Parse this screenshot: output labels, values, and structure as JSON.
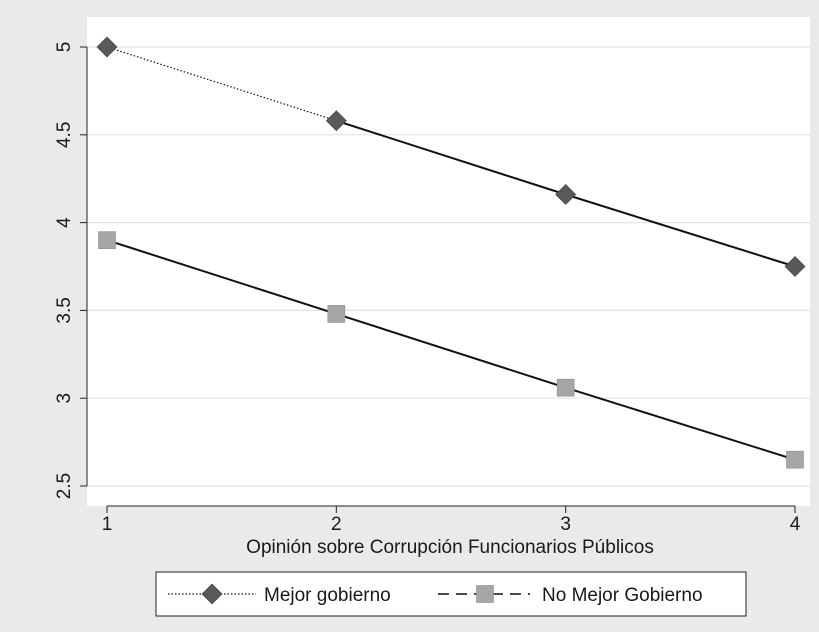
{
  "chart_data": {
    "type": "line",
    "title": "",
    "xlabel": "Opinión sobre Corrupción Funcionarios Públicos",
    "ylabel": "",
    "x": [
      1,
      2,
      3,
      4
    ],
    "xlim": [
      1,
      4
    ],
    "ylim": [
      2.5,
      5
    ],
    "xticks": [
      1,
      2,
      3,
      4
    ],
    "yticks": [
      2.5,
      3,
      3.5,
      4,
      4.5,
      5
    ],
    "xtick_labels": [
      "1",
      "2",
      "3",
      "4"
    ],
    "ytick_labels": [
      "2.5",
      "3",
      "3.5",
      "4",
      "4.5",
      "5"
    ],
    "grid": true,
    "legend_position": "bottom",
    "series": [
      {
        "name": "Mejor gobierno",
        "values": [
          5.0,
          4.58,
          4.16,
          3.75
        ],
        "marker": "diamond",
        "line_style": "dotted",
        "color": "#595959"
      },
      {
        "name": "No Mejor Gobierno",
        "values": [
          3.9,
          3.48,
          3.06,
          2.65
        ],
        "marker": "square",
        "line_style": "dashed",
        "color": "#a6a6a6"
      }
    ],
    "colors": {
      "outer_background": "#eaeaea",
      "plot_background": "#ffffff",
      "grid": "#e3e3e3",
      "line": "#111111"
    }
  }
}
